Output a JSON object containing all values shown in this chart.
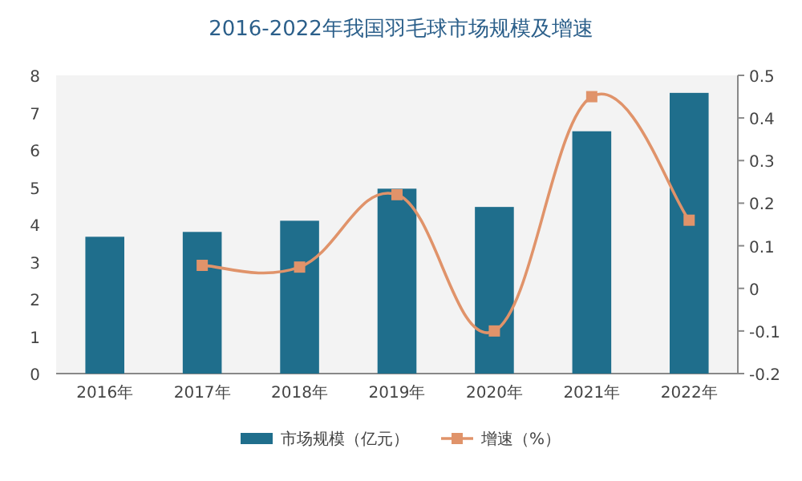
{
  "chart_data": {
    "type": "bar",
    "title": "2016-2022年我国羽毛球市场规模及增速",
    "categories": [
      "2016年",
      "2017年",
      "2018年",
      "2019年",
      "2020年",
      "2021年",
      "2022年"
    ],
    "series": [
      {
        "name": "市场规模（亿元）",
        "color": "#1f6e8c",
        "values": [
          3.67,
          3.8,
          4.1,
          4.96,
          4.47,
          6.5,
          7.53
        ]
      },
      {
        "name": "增速（%）",
        "type": "line",
        "axis": "y2",
        "color": "#e0936a",
        "marker": "square",
        "values": [
          null,
          0.054,
          0.05,
          0.22,
          -0.1,
          0.45,
          0.16
        ]
      }
    ],
    "ylim": [
      0,
      8
    ],
    "yticks": [
      0,
      1,
      2,
      3,
      4,
      5,
      6,
      7,
      8
    ],
    "y2lim": [
      -0.2,
      0.5
    ],
    "y2ticks": [
      -0.2,
      -0.1,
      0,
      0.1,
      0.2,
      0.3,
      0.4,
      0.5
    ],
    "legend": "bottom"
  }
}
